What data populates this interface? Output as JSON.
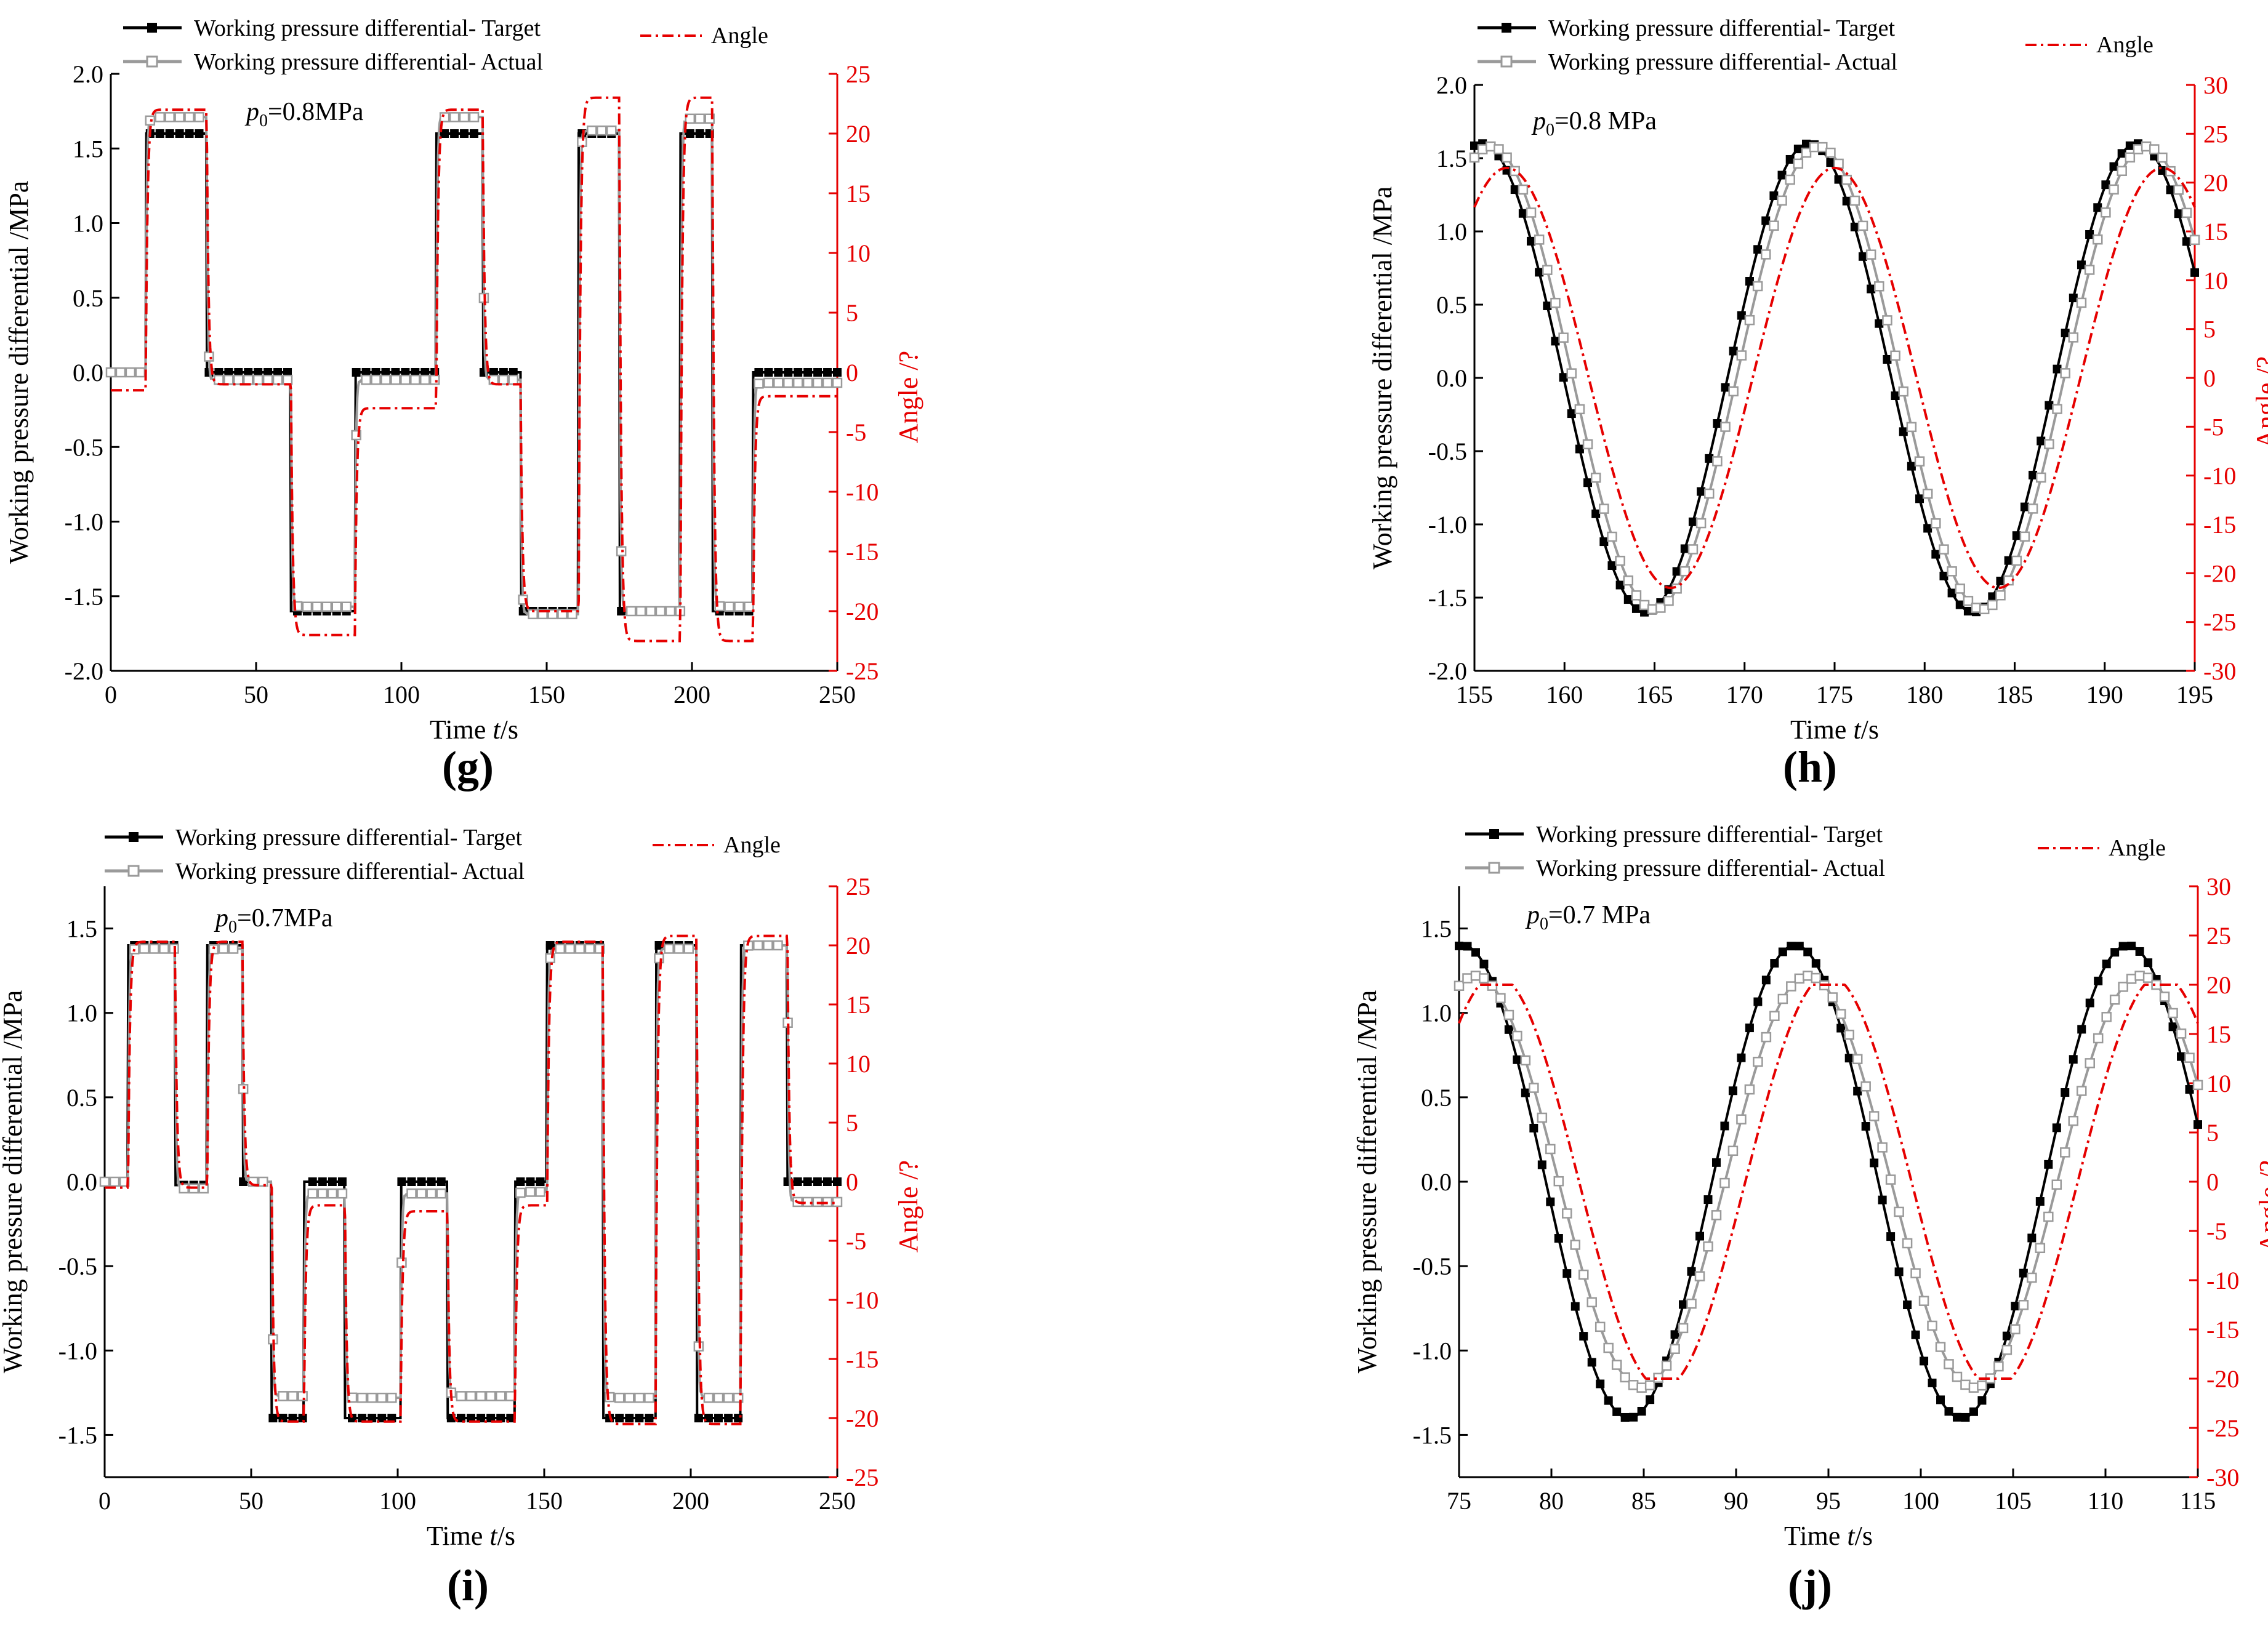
{
  "panels": [
    {
      "label": "(g)",
      "p0": "0.8MPa",
      "xlabel": "Time",
      "xunit": "/s",
      "ylabel": "Working pressure differential  /MPa",
      "y2label": "Angle /?",
      "legend": {
        "target": "Working pressure differential-   Target",
        "actual": "Working pressure differential-   Actual",
        "angle": "Angle"
      }
    },
    {
      "label": "(h)",
      "p0": "0.8 MPa",
      "xlabel": "Time",
      "xunit": "/s",
      "ylabel": "Working pressure differential  /MPa",
      "y2label": "Angle /?",
      "legend": {
        "target": "Working pressure differential-   Target",
        "actual": "Working pressure differential-   Actual",
        "angle": "Angle"
      }
    },
    {
      "label": "(i)",
      "p0": "0.7MPa",
      "xlabel": "Time",
      "xunit": "/s",
      "ylabel": "Working pressure differential  /MPa",
      "y2label": "Angle /?",
      "legend": {
        "target": "Working pressure differential-   Target",
        "actual": "Working pressure differential-   Actual",
        "angle": "Angle"
      }
    },
    {
      "label": "(j)",
      "p0": "0.7 MPa",
      "xlabel": "Time",
      "xunit": "/s",
      "ylabel": "Working pressure differential  /MPa",
      "y2label": "Angle /?",
      "legend": {
        "target": "Working pressure differential-   Target",
        "actual": "Working pressure differential-   Actual",
        "angle": "Angle"
      }
    }
  ],
  "chart_data": [
    {
      "type": "line",
      "id": "g",
      "title": "p0=0.8MPa",
      "xlabel": "Time t/s",
      "ylabel": "Working pressure differential /MPa",
      "y2label": "Angle /?",
      "xlim": [
        0,
        250
      ],
      "ylim": [
        -2.0,
        2.0
      ],
      "y2lim": [
        -25,
        25
      ],
      "xticks": [
        0,
        50,
        100,
        150,
        200,
        250
      ],
      "yticks": [
        -2.0,
        -1.5,
        -1.0,
        -0.5,
        0.0,
        0.5,
        1.0,
        1.5,
        2.0
      ],
      "y2ticks": [
        -25,
        -20,
        -15,
        -10,
        -5,
        0,
        5,
        10,
        15,
        20,
        25
      ],
      "ytick_labels": [
        "-2.0",
        "-1.5",
        "-1.0",
        "-0.5",
        "0.0",
        "0.5",
        "1.0",
        "1.5",
        "2.0"
      ],
      "series": [
        {
          "name": "Working pressure differential- Target",
          "axis": "left",
          "marker": "filled-square",
          "style": "step",
          "steps": [
            [
              0,
              0
            ],
            [
              12,
              1.6
            ],
            [
              33,
              0
            ],
            [
              62,
              -1.6
            ],
            [
              84,
              0
            ],
            [
              112,
              1.6
            ],
            [
              128,
              0
            ],
            [
              141,
              -1.6
            ],
            [
              161,
              1.6
            ],
            [
              175,
              -1.6
            ],
            [
              196,
              1.6
            ],
            [
              207,
              -1.6
            ],
            [
              221,
              0
            ],
            [
              250,
              0
            ]
          ]
        },
        {
          "name": "Working pressure differential- Actual",
          "axis": "left",
          "marker": "open-square",
          "style": "smoothed-step",
          "levels": [
            [
              0,
              0
            ],
            [
              12,
              1.71
            ],
            [
              33,
              -0.05
            ],
            [
              62,
              -1.57
            ],
            [
              84,
              -0.05
            ],
            [
              112,
              1.71
            ],
            [
              128,
              -0.05
            ],
            [
              141,
              -1.62
            ],
            [
              161,
              1.62
            ],
            [
              175,
              -1.6
            ],
            [
              196,
              1.7
            ],
            [
              207,
              -1.57
            ],
            [
              221,
              -0.07
            ],
            [
              250,
              -0.07
            ]
          ]
        },
        {
          "name": "Angle",
          "axis": "right",
          "style": "dash-dot",
          "steps": [
            [
              0,
              -1.5
            ],
            [
              12,
              22
            ],
            [
              33,
              -1
            ],
            [
              62,
              -22
            ],
            [
              84,
              -3
            ],
            [
              112,
              22
            ],
            [
              128,
              -1
            ],
            [
              141,
              -20
            ],
            [
              161,
              23
            ],
            [
              175,
              -22.5
            ],
            [
              196,
              23
            ],
            [
              207,
              -22.5
            ],
            [
              221,
              -2
            ],
            [
              250,
              -2
            ]
          ]
        }
      ]
    },
    {
      "type": "line",
      "id": "h",
      "title": "p0=0.8 MPa",
      "xlabel": "Time t/s",
      "ylabel": "Working pressure differential /MPa",
      "y2label": "Angle /?",
      "xlim": [
        155,
        195
      ],
      "ylim": [
        -2.0,
        2.0
      ],
      "y2lim": [
        -30,
        30
      ],
      "xticks": [
        155,
        160,
        165,
        170,
        175,
        180,
        185,
        190,
        195
      ],
      "yticks": [
        -2.0,
        -1.5,
        -1.0,
        -0.5,
        0.0,
        0.5,
        1.0,
        1.5,
        2.0
      ],
      "y2ticks": [
        -30,
        -25,
        -20,
        -15,
        -10,
        -5,
        0,
        5,
        10,
        15,
        20,
        25,
        30
      ],
      "ytick_labels": [
        "-2.0",
        "-1.5",
        "-1.0",
        "-0.5",
        "0.0",
        "0.5",
        "1.0",
        "1.5",
        "2.0"
      ],
      "series": [
        {
          "name": "Working pressure differential- Target",
          "axis": "left",
          "marker": "filled-square",
          "amplitude": 1.6,
          "period": 18.2,
          "peak_at": 173.6
        },
        {
          "name": "Working pressure differential- Actual",
          "axis": "left",
          "marker": "open-square",
          "amplitude": 1.58,
          "period": 18.2,
          "peak_at": 174.1
        },
        {
          "name": "Angle",
          "axis": "right",
          "style": "dash-dot",
          "amplitude": 21.5,
          "period": 18.2,
          "peak_at": 175.0
        }
      ]
    },
    {
      "type": "line",
      "id": "i",
      "title": "p0=0.7MPa",
      "xlabel": "Time t/s",
      "ylabel": "Working pressure differential /MPa",
      "y2label": "Angle /?",
      "xlim": [
        0,
        250
      ],
      "ylim": [
        -1.75,
        1.75
      ],
      "y2lim": [
        -25,
        25
      ],
      "xticks": [
        0,
        50,
        100,
        150,
        200,
        250
      ],
      "yticks": [
        -1.5,
        -1.0,
        -0.5,
        0.0,
        0.5,
        1.0,
        1.5
      ],
      "y2ticks": [
        -25,
        -20,
        -15,
        -10,
        -5,
        0,
        5,
        10,
        15,
        20,
        25
      ],
      "ytick_labels": [
        "-1.5",
        "-1.0",
        "-0.5",
        "0.0",
        "0.5",
        "1.0",
        "1.5"
      ],
      "series": [
        {
          "name": "Working pressure differential- Target",
          "axis": "left",
          "marker": "filled-square",
          "style": "step",
          "steps": [
            [
              0,
              0
            ],
            [
              8,
              1.4
            ],
            [
              24,
              -0.02
            ],
            [
              35,
              1.4
            ],
            [
              47,
              0
            ],
            [
              57,
              -1.4
            ],
            [
              68,
              0
            ],
            [
              82,
              -1.4
            ],
            [
              101,
              0
            ],
            [
              117,
              -1.4
            ],
            [
              140,
              0
            ],
            [
              151,
              1.4
            ],
            [
              170,
              -1.4
            ],
            [
              188,
              1.4
            ],
            [
              202,
              -1.4
            ],
            [
              217,
              1.4
            ],
            [
              233,
              0
            ],
            [
              250,
              0
            ]
          ]
        },
        {
          "name": "Working pressure differential- Actual",
          "axis": "left",
          "marker": "open-square",
          "style": "smoothed-step",
          "levels": [
            [
              0,
              0
            ],
            [
              8,
              1.38
            ],
            [
              24,
              -0.04
            ],
            [
              35,
              1.38
            ],
            [
              47,
              0
            ],
            [
              57,
              -1.27
            ],
            [
              68,
              -0.07
            ],
            [
              82,
              -1.28
            ],
            [
              101,
              -0.07
            ],
            [
              117,
              -1.27
            ],
            [
              140,
              -0.06
            ],
            [
              151,
              1.38
            ],
            [
              170,
              -1.28
            ],
            [
              188,
              1.38
            ],
            [
              202,
              -1.28
            ],
            [
              217,
              1.4
            ],
            [
              233,
              -0.12
            ],
            [
              250,
              -0.12
            ]
          ]
        },
        {
          "name": "Angle",
          "axis": "right",
          "style": "dash-dot",
          "steps": [
            [
              0,
              -0.5
            ],
            [
              8,
              20.3
            ],
            [
              24,
              -0.5
            ],
            [
              35,
              20.3
            ],
            [
              47,
              -0.3
            ],
            [
              57,
              -20.3
            ],
            [
              68,
              -2
            ],
            [
              82,
              -20.3
            ],
            [
              101,
              -2.5
            ],
            [
              117,
              -20.3
            ],
            [
              140,
              -2
            ],
            [
              151,
              20.3
            ],
            [
              170,
              -20.5
            ],
            [
              188,
              20.8
            ],
            [
              202,
              -20.5
            ],
            [
              217,
              20.8
            ],
            [
              233,
              -1.8
            ],
            [
              250,
              -1.8
            ]
          ]
        }
      ]
    },
    {
      "type": "line",
      "id": "j",
      "title": "p0=0.7 MPa",
      "xlabel": "Time t/s",
      "ylabel": "Working pressure differential /MPa",
      "y2label": "Angle /?",
      "xlim": [
        75,
        115
      ],
      "ylim": [
        -1.75,
        1.75
      ],
      "y2lim": [
        -30,
        30
      ],
      "xticks": [
        75,
        80,
        85,
        90,
        95,
        100,
        105,
        110,
        115
      ],
      "yticks": [
        -1.5,
        -1.0,
        -0.5,
        0.0,
        0.5,
        1.0,
        1.5
      ],
      "y2ticks": [
        -30,
        -25,
        -20,
        -15,
        -10,
        -5,
        0,
        5,
        10,
        15,
        20,
        25,
        30
      ],
      "ytick_labels": [
        "-1.5",
        "-1.0",
        "-0.5",
        "0.0",
        "0.5",
        "1.0",
        "1.5"
      ],
      "series": [
        {
          "name": "Working pressure differential- Target",
          "axis": "left",
          "marker": "filled-square",
          "amplitude": 1.4,
          "period": 18.0,
          "peak_at": 93.2
        },
        {
          "name": "Working pressure differential- Actual",
          "axis": "left",
          "marker": "open-square",
          "amplitude": 1.22,
          "period": 18.0,
          "peak_at": 93.9
        },
        {
          "name": "Angle",
          "axis": "right",
          "style": "dash-dot",
          "amplitude": 20,
          "period": 18.0,
          "peak_at": 95.0,
          "flat_top": true
        }
      ]
    }
  ],
  "colors": {
    "target": "#000000",
    "actual": "#9a9a9a",
    "angle": "#e60000",
    "axis": "#000000",
    "right_axis": "#e60000"
  }
}
